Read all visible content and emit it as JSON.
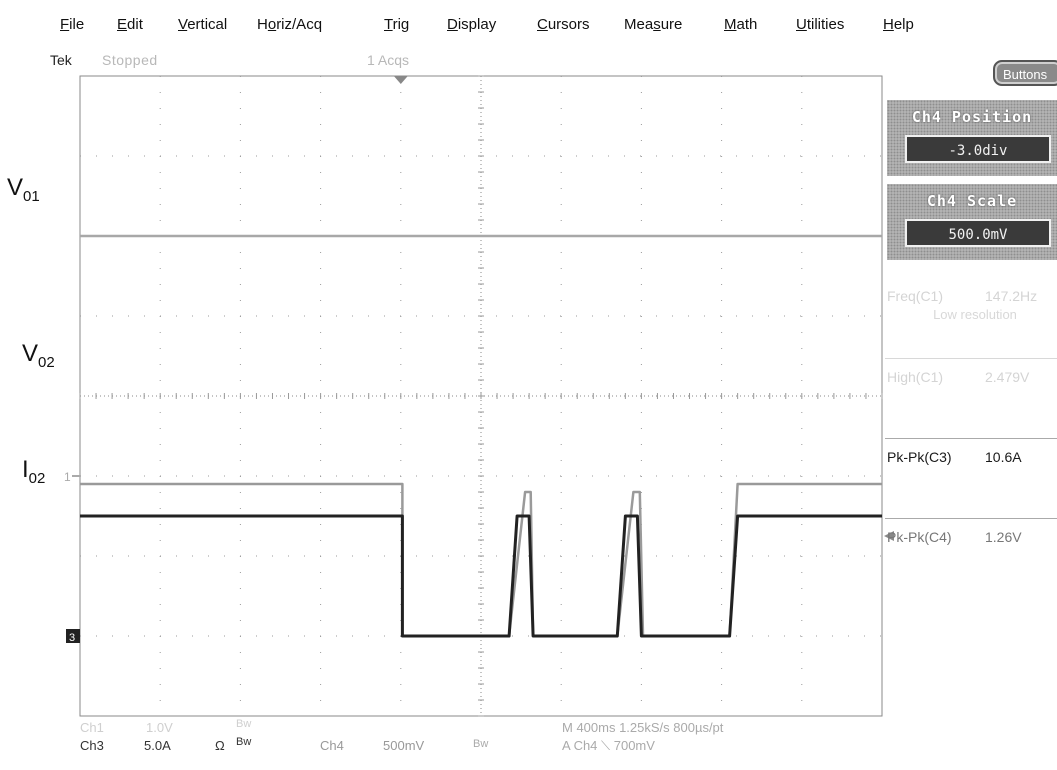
{
  "menu": [
    {
      "pre": "",
      "u": "F",
      "post": "ile"
    },
    {
      "pre": "",
      "u": "E",
      "post": "dit"
    },
    {
      "pre": "",
      "u": "V",
      "post": "ertical"
    },
    {
      "pre": "H",
      "u": "o",
      "post": "riz/Acq"
    },
    {
      "pre": "",
      "u": "T",
      "post": "rig"
    },
    {
      "pre": "",
      "u": "D",
      "post": "isplay"
    },
    {
      "pre": "",
      "u": "C",
      "post": "ursors"
    },
    {
      "pre": "Mea",
      "u": "s",
      "post": "ure"
    },
    {
      "pre": "",
      "u": "M",
      "post": "ath"
    },
    {
      "pre": "",
      "u": "U",
      "post": "tilities"
    },
    {
      "pre": "",
      "u": "H",
      "post": "elp"
    }
  ],
  "status_top": {
    "brand": "Tek",
    "state": "Stopped",
    "acqs": "1 Acqs"
  },
  "buttons_label": "Buttons",
  "controls": {
    "position": {
      "title": "Ch4 Position",
      "value": "-3.0div"
    },
    "scale": {
      "title": "Ch4 Scale",
      "value": "500.0mV"
    }
  },
  "measurements": [
    {
      "label": "Freq(C1)",
      "value": "147.2Hz",
      "note": "Low resolution",
      "faint": true
    },
    {
      "label": "High(C1)",
      "value": "2.479V",
      "note": "",
      "faint": true
    },
    {
      "label": "Pk-Pk(C3)",
      "value": "10.6A",
      "note": "",
      "faint": false
    },
    {
      "label": "Pk-Pk(C4)",
      "value": "1.26V",
      "note": "",
      "faint": false
    }
  ],
  "trace_labels": {
    "v01": {
      "main": "V",
      "sub": "01"
    },
    "v02": {
      "main": "V",
      "sub": "02"
    },
    "i02": {
      "main": "I",
      "sub": "02"
    }
  },
  "channel_markers": {
    "ch1": "1",
    "ch3": "3"
  },
  "status_bottom": {
    "ch1": {
      "name": "Ch1",
      "scale": "1.0V",
      "bw": "Bw"
    },
    "ch3": {
      "name": "Ch3",
      "scale": "5.0A",
      "ohm": "Ω",
      "bw": "Bw"
    },
    "ch4": {
      "name": "Ch4",
      "scale": "500mV",
      "bw": "Bw"
    },
    "horizontal": "M 400ms 1.25kS/s  800µs/pt",
    "trigger": "A  Ch4  ⟍  700mV"
  },
  "colors": {
    "graticule": "#8a8a8a",
    "trace_dark": "#222222",
    "trace_light": "#9a9a9a",
    "background": "#ffffff"
  },
  "chart_data": {
    "type": "line",
    "x_divisions": 10,
    "y_divisions": 8,
    "series": [
      {
        "name": "V01",
        "values": [
          {
            "x": 0,
            "y": 2.0
          },
          {
            "x": 10,
            "y": 2.0
          }
        ]
      },
      {
        "name": "V02",
        "values": [
          {
            "x": 0,
            "y": -1.1
          },
          {
            "x": 4.02,
            "y": -1.1
          },
          {
            "x": 4.02,
            "y": -3.0
          },
          {
            "x": 5.35,
            "y": -3.0
          },
          {
            "x": 5.55,
            "y": -1.2
          },
          {
            "x": 5.62,
            "y": -1.2
          },
          {
            "x": 5.65,
            "y": -3.0
          },
          {
            "x": 6.7,
            "y": -3.0
          },
          {
            "x": 6.9,
            "y": -1.2
          },
          {
            "x": 6.98,
            "y": -1.2
          },
          {
            "x": 7.02,
            "y": -3.0
          },
          {
            "x": 8.1,
            "y": -3.0
          },
          {
            "x": 8.2,
            "y": -1.1
          },
          {
            "x": 10,
            "y": -1.1
          }
        ]
      },
      {
        "name": "I02",
        "values": [
          {
            "x": 0,
            "y": -1.5
          },
          {
            "x": 4.02,
            "y": -1.5
          },
          {
            "x": 4.02,
            "y": -3.0
          },
          {
            "x": 5.35,
            "y": -3.0
          },
          {
            "x": 5.45,
            "y": -1.5
          },
          {
            "x": 5.6,
            "y": -1.5
          },
          {
            "x": 5.65,
            "y": -3.0
          },
          {
            "x": 6.7,
            "y": -3.0
          },
          {
            "x": 6.8,
            "y": -1.5
          },
          {
            "x": 6.95,
            "y": -1.5
          },
          {
            "x": 7.0,
            "y": -3.0
          },
          {
            "x": 8.1,
            "y": -3.0
          },
          {
            "x": 8.2,
            "y": -1.5
          },
          {
            "x": 10,
            "y": -1.5
          }
        ]
      }
    ]
  }
}
